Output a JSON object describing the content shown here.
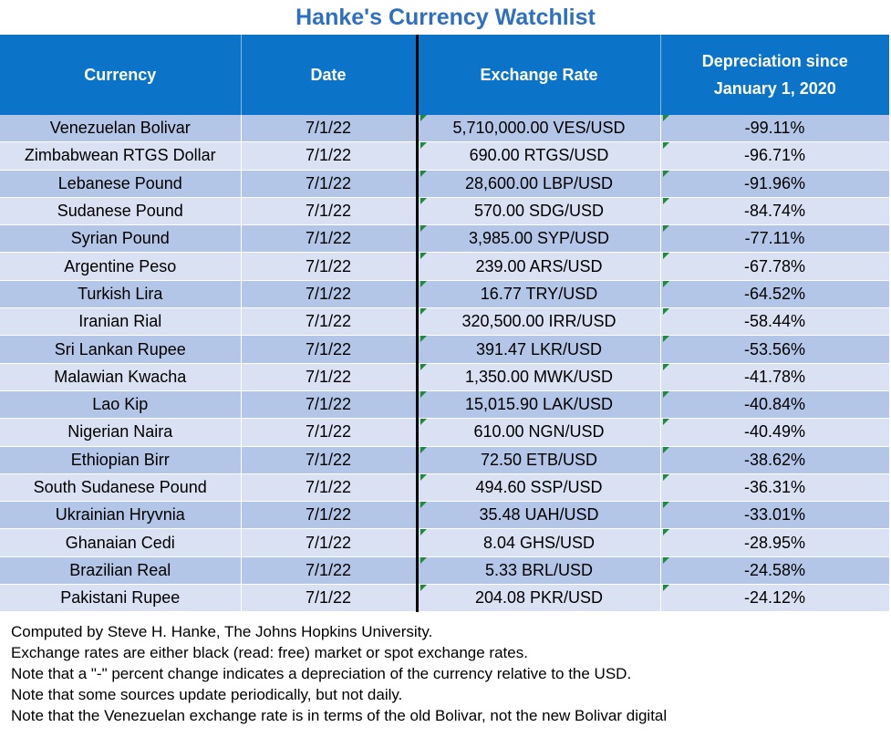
{
  "title": "Hanke's Currency Watchlist",
  "headers": {
    "currency": "Currency",
    "date": "Date",
    "rate": "Exchange Rate",
    "depreciation_line1": "Depreciation since",
    "depreciation_line2": "January 1, 2020"
  },
  "colors": {
    "title": "#2f6fc0",
    "header_bg": "#0b74c9",
    "row_odd": "#b4c6e7",
    "row_even": "#d9e1f2",
    "flag": "#1e8a3c"
  },
  "rows": [
    {
      "currency": "Venezuelan Bolivar",
      "date": "7/1/22",
      "rate": "5,710,000.00 VES/USD",
      "depreciation": "-99.11%"
    },
    {
      "currency": "Zimbabwean RTGS Dollar",
      "date": "7/1/22",
      "rate": "690.00 RTGS/USD",
      "depreciation": "-96.71%"
    },
    {
      "currency": "Lebanese Pound",
      "date": "7/1/22",
      "rate": "28,600.00 LBP/USD",
      "depreciation": "-91.96%"
    },
    {
      "currency": "Sudanese Pound",
      "date": "7/1/22",
      "rate": "570.00 SDG/USD",
      "depreciation": "-84.74%"
    },
    {
      "currency": "Syrian Pound",
      "date": "7/1/22",
      "rate": "3,985.00 SYP/USD",
      "depreciation": "-77.11%"
    },
    {
      "currency": "Argentine Peso",
      "date": "7/1/22",
      "rate": "239.00 ARS/USD",
      "depreciation": "-67.78%"
    },
    {
      "currency": "Turkish Lira",
      "date": "7/1/22",
      "rate": "16.77 TRY/USD",
      "depreciation": "-64.52%"
    },
    {
      "currency": "Iranian Rial",
      "date": "7/1/22",
      "rate": "320,500.00 IRR/USD",
      "depreciation": "-58.44%"
    },
    {
      "currency": "Sri Lankan Rupee",
      "date": "7/1/22",
      "rate": "391.47 LKR/USD",
      "depreciation": "-53.56%"
    },
    {
      "currency": "Malawian Kwacha",
      "date": "7/1/22",
      "rate": "1,350.00 MWK/USD",
      "depreciation": "-41.78%"
    },
    {
      "currency": "Lao Kip",
      "date": "7/1/22",
      "rate": "15,015.90 LAK/USD",
      "depreciation": "-40.84%"
    },
    {
      "currency": "Nigerian Naira",
      "date": "7/1/22",
      "rate": "610.00 NGN/USD",
      "depreciation": "-40.49%"
    },
    {
      "currency": "Ethiopian Birr",
      "date": "7/1/22",
      "rate": "72.50 ETB/USD",
      "depreciation": "-38.62%"
    },
    {
      "currency": "South Sudanese Pound",
      "date": "7/1/22",
      "rate": "494.60 SSP/USD",
      "depreciation": "-36.31%"
    },
    {
      "currency": "Ukrainian Hryvnia",
      "date": "7/1/22",
      "rate": "35.48 UAH/USD",
      "depreciation": "-33.01%"
    },
    {
      "currency": "Ghanaian Cedi",
      "date": "7/1/22",
      "rate": "8.04 GHS/USD",
      "depreciation": "-28.95%"
    },
    {
      "currency": "Brazilian Real",
      "date": "7/1/22",
      "rate": "5.33 BRL/USD",
      "depreciation": "-24.58%"
    },
    {
      "currency": "Pakistani Rupee",
      "date": "7/1/22",
      "rate": "204.08 PKR/USD",
      "depreciation": "-24.12%"
    }
  ],
  "notes": [
    "Computed by Steve H. Hanke, The Johns Hopkins University.",
    "Exchange rates are either black (read: free) market or spot exchange rates.",
    "Note that a \"-\" percent change indicates a depreciation of the currency relative to the USD.",
    "Note that some sources update periodically, but not daily.",
    "Note that the Venezuelan exchange rate is in terms of the old Bolivar, not the new Bolivar digital"
  ]
}
